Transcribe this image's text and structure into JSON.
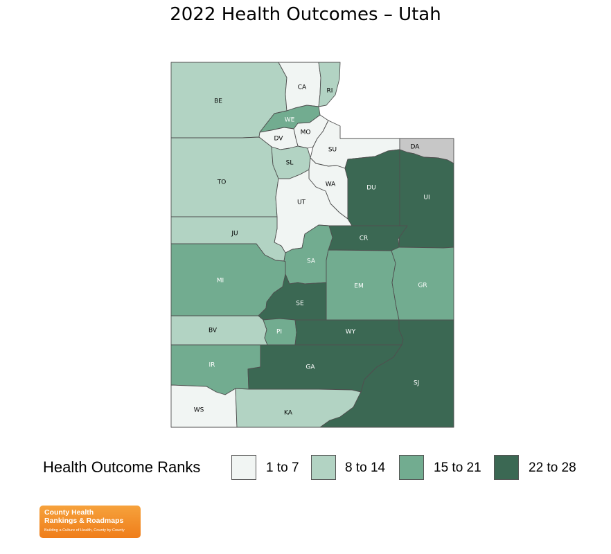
{
  "title": "2022 Health Outcomes – Utah",
  "colors": {
    "rank_1_7": "#f1f5f3",
    "rank_8_14": "#b2d3c3",
    "rank_15_21": "#72ac90",
    "rank_22_28": "#3b6853",
    "no_data": "#c7c7c7",
    "label_light": "#ffffff",
    "label_dark": "#000000"
  },
  "counties": [
    {
      "code": "BE",
      "rank_group": "8 to 14"
    },
    {
      "code": "CA",
      "rank_group": "1 to 7"
    },
    {
      "code": "RI",
      "rank_group": "8 to 14"
    },
    {
      "code": "WE",
      "rank_group": "15 to 21"
    },
    {
      "code": "MO",
      "rank_group": "1 to 7"
    },
    {
      "code": "DV",
      "rank_group": "1 to 7"
    },
    {
      "code": "SU",
      "rank_group": "1 to 7"
    },
    {
      "code": "DA",
      "rank_group": "no data"
    },
    {
      "code": "TO",
      "rank_group": "8 to 14"
    },
    {
      "code": "SL",
      "rank_group": "8 to 14"
    },
    {
      "code": "WA",
      "rank_group": "1 to 7"
    },
    {
      "code": "DU",
      "rank_group": "22 to 28"
    },
    {
      "code": "UI",
      "rank_group": "22 to 28"
    },
    {
      "code": "UT",
      "rank_group": "1 to 7"
    },
    {
      "code": "JU",
      "rank_group": "8 to 14"
    },
    {
      "code": "CR",
      "rank_group": "22 to 28"
    },
    {
      "code": "SA",
      "rank_group": "15 to 21"
    },
    {
      "code": "MI",
      "rank_group": "15 to 21"
    },
    {
      "code": "EM",
      "rank_group": "15 to 21"
    },
    {
      "code": "GR",
      "rank_group": "15 to 21"
    },
    {
      "code": "SE",
      "rank_group": "22 to 28"
    },
    {
      "code": "BV",
      "rank_group": "8 to 14"
    },
    {
      "code": "PI",
      "rank_group": "15 to 21"
    },
    {
      "code": "WY",
      "rank_group": "22 to 28"
    },
    {
      "code": "IR",
      "rank_group": "15 to 21"
    },
    {
      "code": "GA",
      "rank_group": "22 to 28"
    },
    {
      "code": "SJ",
      "rank_group": "22 to 28"
    },
    {
      "code": "WS",
      "rank_group": "1 to 7"
    },
    {
      "code": "KA",
      "rank_group": "8 to 14"
    }
  ],
  "legend": {
    "title": "Health Outcome Ranks",
    "items": [
      {
        "label": "1 to 7",
        "color": "#f1f5f3"
      },
      {
        "label": "8 to 14",
        "color": "#b2d3c3"
      },
      {
        "label": "15 to 21",
        "color": "#72ac90"
      },
      {
        "label": "22 to 28",
        "color": "#3b6853"
      }
    ]
  },
  "logo": {
    "line1": "County Health",
    "line2": "Rankings & Roadmaps",
    "tagline": "Building a Culture of Health, County by County"
  }
}
